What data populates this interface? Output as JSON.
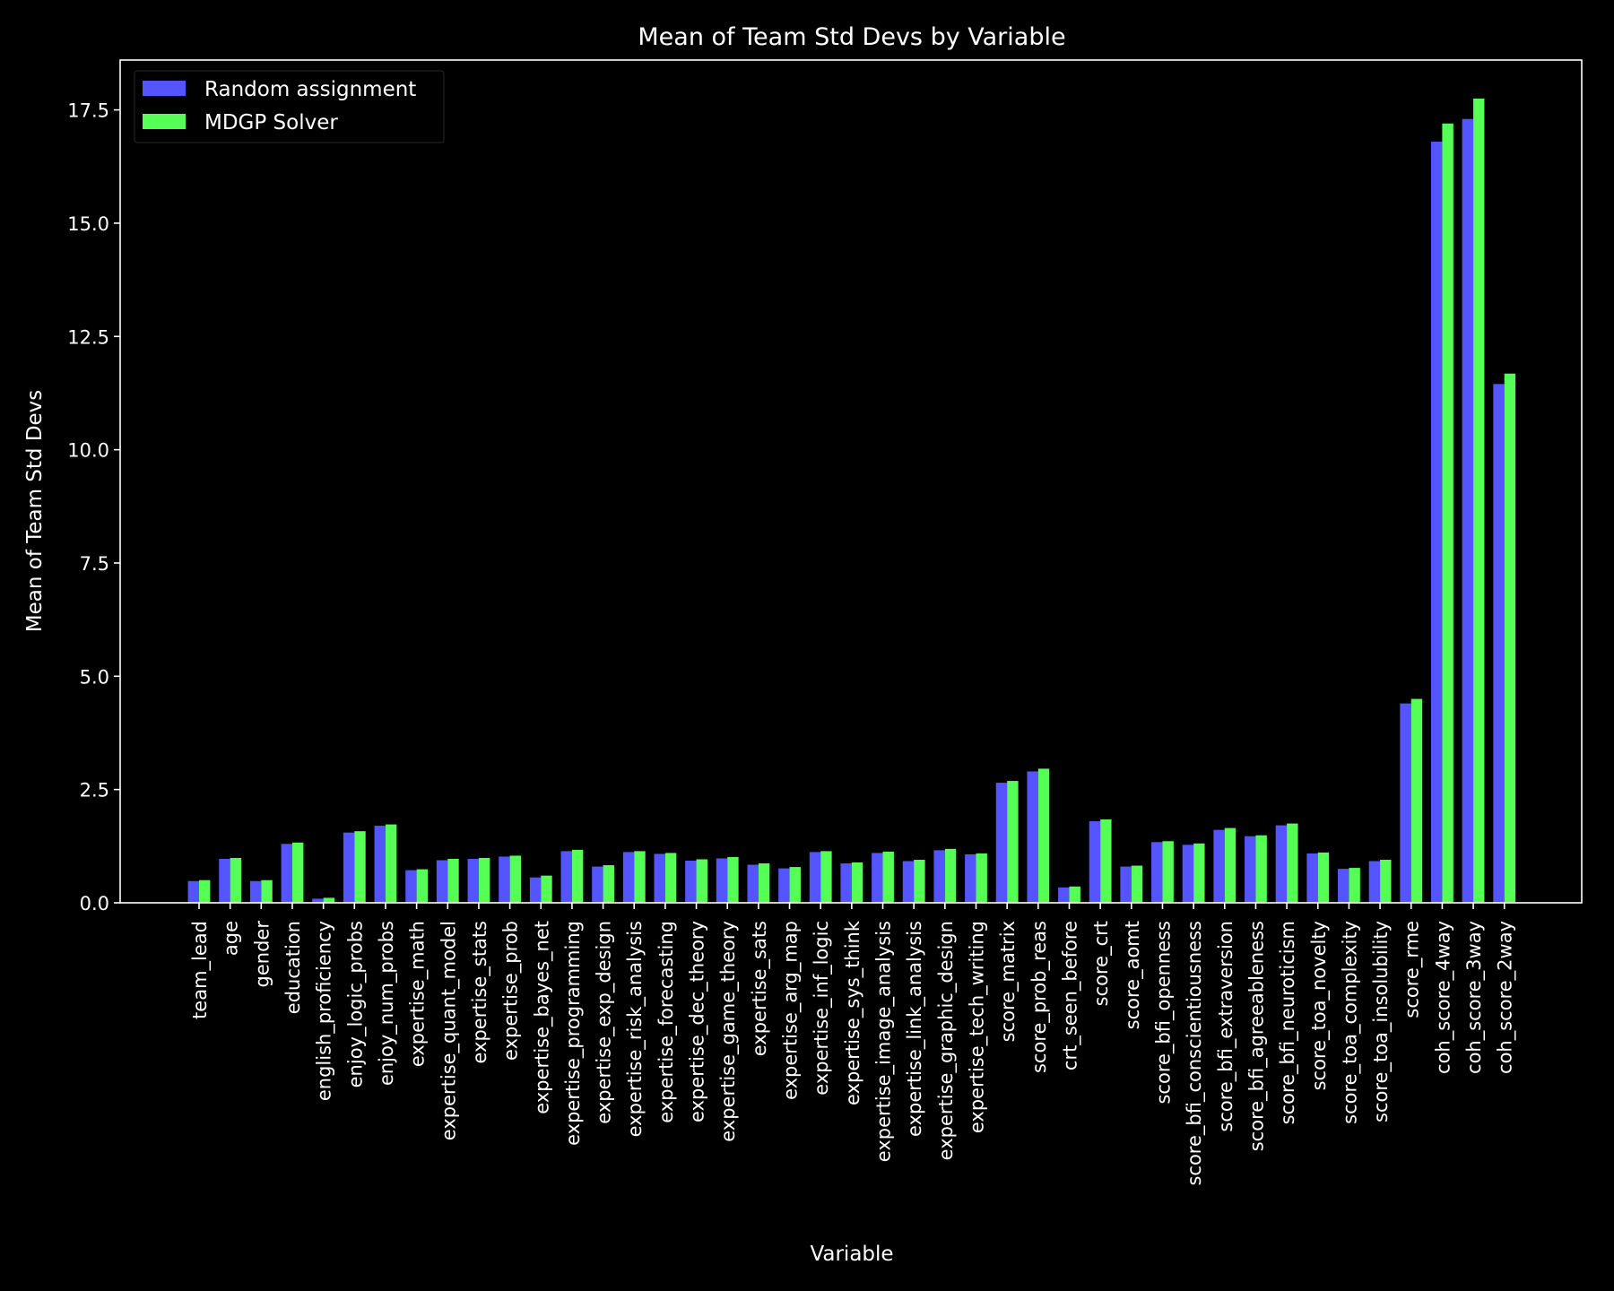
{
  "chart_data": {
    "type": "bar",
    "title": "Mean of Team Std Devs by Variable",
    "xlabel": "Variable",
    "ylabel": "Mean of Team Std Devs",
    "ylim": [
      0,
      18.6
    ],
    "yticks": [
      0.0,
      2.5,
      5.0,
      7.5,
      10.0,
      12.5,
      15.0,
      17.5
    ],
    "ytick_labels": [
      "0.0",
      "2.5",
      "5.0",
      "7.5",
      "10.0",
      "12.5",
      "15.0",
      "17.5"
    ],
    "grid": false,
    "legend_position": "top-left",
    "categories": [
      "team_lead",
      "age",
      "gender",
      "education",
      "english_proficiency",
      "enjoy_logic_probs",
      "enjoy_num_probs",
      "expertise_math",
      "expertise_quant_model",
      "expertise_stats",
      "expertise_prob",
      "expertise_bayes_net",
      "expertise_programming",
      "expertise_exp_design",
      "expertise_risk_analysis",
      "expertise_forecasting",
      "expertise_dec_theory",
      "expertise_game_theory",
      "expertise_sats",
      "expertise_arg_map",
      "expertise_inf_logic",
      "expertise_sys_think",
      "expertise_image_analysis",
      "expertise_link_analysis",
      "expertise_graphic_design",
      "expertise_tech_writing",
      "score_matrix",
      "score_prob_reas",
      "crt_seen_before",
      "score_crt",
      "score_aomt",
      "score_bfi_openness",
      "score_bfi_conscientiousness",
      "score_bfi_extraversion",
      "score_bfi_agreeableness",
      "score_bfi_neuroticism",
      "score_toa_novelty",
      "score_toa_complexity",
      "score_toa_insolubility",
      "score_rme",
      "coh_score_4way",
      "coh_score_3way",
      "coh_score_2way"
    ],
    "series": [
      {
        "name": "Random assignment",
        "color": "#5555ff",
        "values": [
          0.48,
          0.97,
          0.48,
          1.3,
          0.09,
          1.55,
          1.7,
          0.72,
          0.94,
          0.97,
          1.02,
          0.56,
          1.14,
          0.8,
          1.12,
          1.08,
          0.93,
          0.98,
          0.84,
          0.76,
          1.12,
          0.87,
          1.1,
          0.92,
          1.16,
          1.07,
          2.65,
          2.9,
          0.34,
          1.8,
          0.8,
          1.34,
          1.28,
          1.61,
          1.47,
          1.71,
          1.09,
          0.75,
          0.92,
          4.4,
          16.8,
          17.3,
          11.45
        ]
      },
      {
        "name": "MDGP Solver",
        "color": "#55ff55",
        "values": [
          0.5,
          0.99,
          0.5,
          1.33,
          0.11,
          1.58,
          1.73,
          0.74,
          0.97,
          0.99,
          1.04,
          0.6,
          1.17,
          0.83,
          1.14,
          1.1,
          0.96,
          1.01,
          0.87,
          0.79,
          1.14,
          0.89,
          1.13,
          0.95,
          1.19,
          1.09,
          2.69,
          2.96,
          0.36,
          1.84,
          0.82,
          1.36,
          1.31,
          1.65,
          1.49,
          1.75,
          1.11,
          0.77,
          0.95,
          4.5,
          17.2,
          17.75,
          11.68
        ]
      }
    ]
  }
}
